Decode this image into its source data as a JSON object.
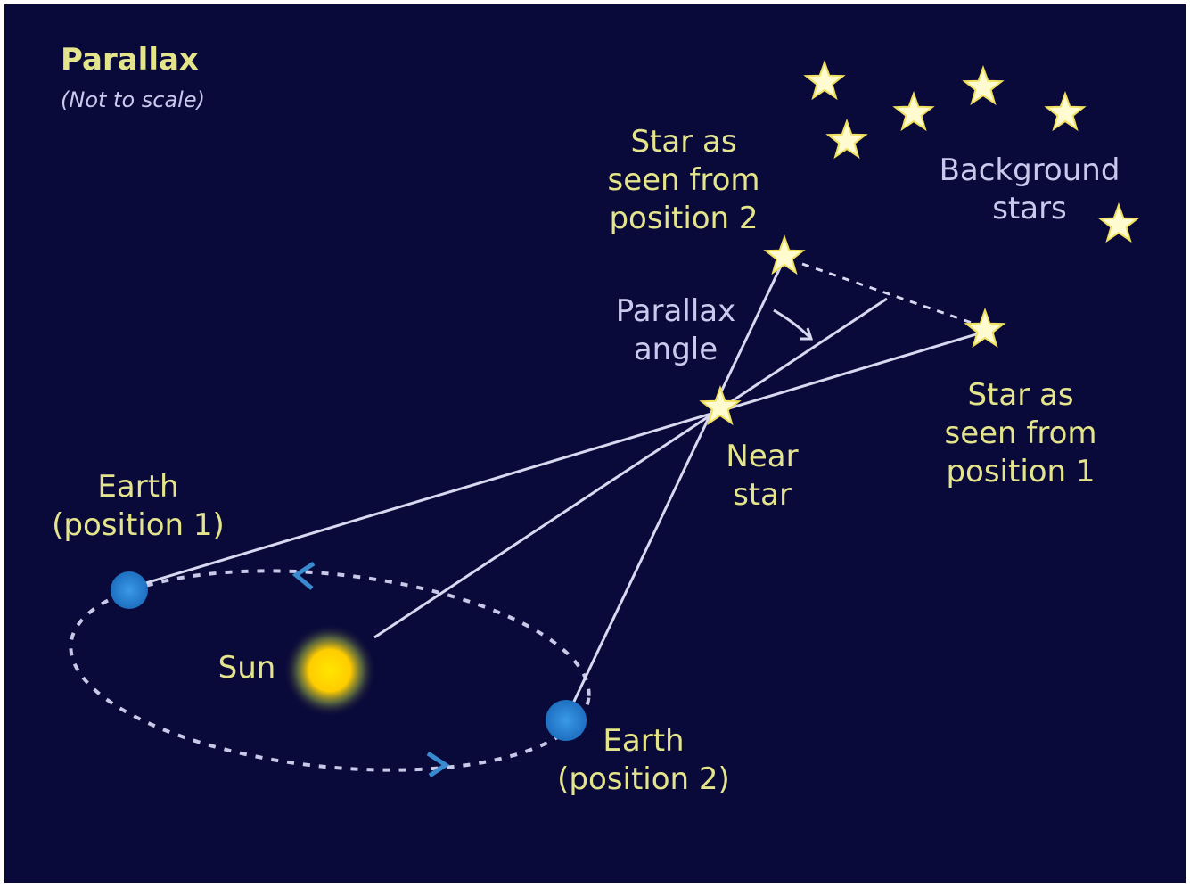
{
  "title": "Parallax",
  "subtitle": "(Not to scale)",
  "labels": {
    "star_position_2": [
      "Star as",
      "seen from",
      "position 2"
    ],
    "background_stars": [
      "Background",
      "stars"
    ],
    "parallax_angle": [
      "Parallax",
      "angle"
    ],
    "near_star": [
      "Near",
      "star"
    ],
    "star_position_1": [
      "Star as",
      "seen from",
      "position 1"
    ],
    "earth_position_1": [
      "Earth",
      "(position 1)"
    ],
    "sun": "Sun",
    "earth_position_2": [
      "Earth",
      "(position 2)"
    ]
  }
}
